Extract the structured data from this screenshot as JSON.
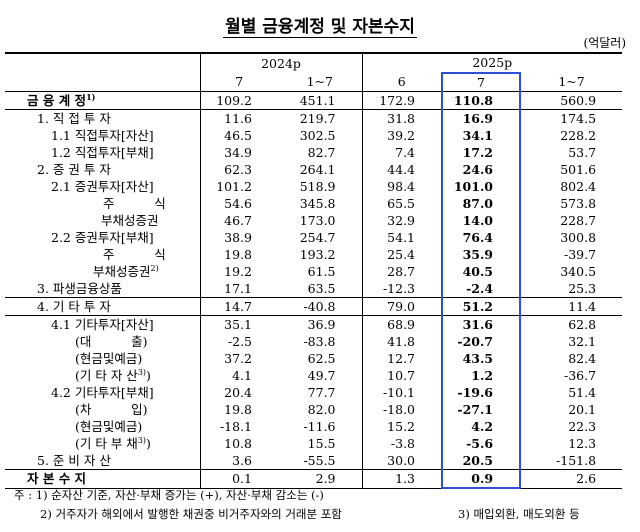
{
  "title": "월별 금융계정 및 자본수지",
  "unit": "(억달러)",
  "table": {
    "groups": [
      "2024p",
      "2025p"
    ],
    "columns": [
      "7",
      "1~7",
      "6",
      "7",
      "1~7"
    ],
    "rows": [
      {
        "label": "금 융 계 정",
        "note": "1)",
        "values": [
          "109.2",
          "451.1",
          "172.9",
          "110.8",
          "560.9"
        ]
      },
      {
        "label": "1. 직 접 투 자",
        "values": [
          "11.6",
          "219.7",
          "31.8",
          "16.9",
          "174.5"
        ]
      },
      {
        "label": "1.1 직접투자[자산]",
        "values": [
          "46.5",
          "302.5",
          "39.2",
          "34.1",
          "228.2"
        ]
      },
      {
        "label": "1.2 직접투자[부채]",
        "values": [
          "34.9",
          "82.7",
          "7.4",
          "17.2",
          "53.7"
        ]
      },
      {
        "label": "2. 증 권 투 자",
        "values": [
          "62.3",
          "264.1",
          "44.4",
          "24.6",
          "501.6"
        ]
      },
      {
        "label": "2.1 증권투자[자산]",
        "values": [
          "101.2",
          "518.9",
          "98.4",
          "101.0",
          "802.4"
        ]
      },
      {
        "label": "주          식",
        "values": [
          "54.6",
          "345.8",
          "65.5",
          "87.0",
          "573.8"
        ]
      },
      {
        "label": "부채성증권",
        "values": [
          "46.7",
          "173.0",
          "32.9",
          "14.0",
          "228.7"
        ]
      },
      {
        "label": "2.2 증권투자[부채]",
        "values": [
          "38.9",
          "254.7",
          "54.1",
          "76.4",
          "300.8"
        ]
      },
      {
        "label": "주          식",
        "values": [
          "19.8",
          "193.2",
          "25.4",
          "35.9",
          "-39.7"
        ]
      },
      {
        "label": "부채성증권",
        "note": "2)",
        "values": [
          "19.2",
          "61.5",
          "28.7",
          "40.5",
          "340.5"
        ]
      },
      {
        "label": "3. 파생금융상품",
        "values": [
          "17.1",
          "63.5",
          "-12.3",
          "-2.4",
          "25.3"
        ]
      },
      {
        "label": "4. 기 타 투 자",
        "values": [
          "14.7",
          "-40.8",
          "79.0",
          "51.2",
          "11.4"
        ]
      },
      {
        "label": "4.1 기타투자[자산]",
        "values": [
          "35.1",
          "36.9",
          "68.9",
          "31.6",
          "62.8"
        ]
      },
      {
        "label": "(대          출)",
        "values": [
          "-2.5",
          "-83.8",
          "41.8",
          "-20.7",
          "32.1"
        ]
      },
      {
        "label": "(현금및예금)",
        "values": [
          "37.2",
          "62.5",
          "12.7",
          "43.5",
          "82.4"
        ]
      },
      {
        "label": "(기 타 자 산",
        "note": "3)",
        "close": ")",
        "values": [
          "4.1",
          "49.7",
          "10.7",
          "1.2",
          "-36.7"
        ]
      },
      {
        "label": "4.2 기타투자[부채]",
        "values": [
          "20.4",
          "77.7",
          "-10.1",
          "-19.6",
          "51.4"
        ]
      },
      {
        "label": "(차          입)",
        "values": [
          "19.8",
          "82.0",
          "-18.0",
          "-27.1",
          "20.1"
        ]
      },
      {
        "label": "(현금및예금)",
        "values": [
          "-18.1",
          "-11.6",
          "15.2",
          "4.2",
          "22.3"
        ]
      },
      {
        "label": "(기 타 부 채",
        "note": "3)",
        "close": ")",
        "values": [
          "10.8",
          "15.5",
          "-3.8",
          "-5.6",
          "12.3"
        ]
      },
      {
        "label": "5. 준 비 자 산",
        "values": [
          "3.6",
          "-55.5",
          "30.0",
          "20.5",
          "-151.8"
        ]
      },
      {
        "label": "자 본 수 지",
        "values": [
          "0.1",
          "2.9",
          "1.3",
          "0.9",
          "2.6"
        ]
      }
    ]
  },
  "footnotes": [
    "주 : 1) 순자산 기준, 자산·부채 증가는 (+), 자산·부채 감소는 (-)",
    "2) 거주자가 해외에서 발행한 채권중 비거주자와의 거래분 포함",
    "3) 매입외환, 매도외환 등"
  ]
}
